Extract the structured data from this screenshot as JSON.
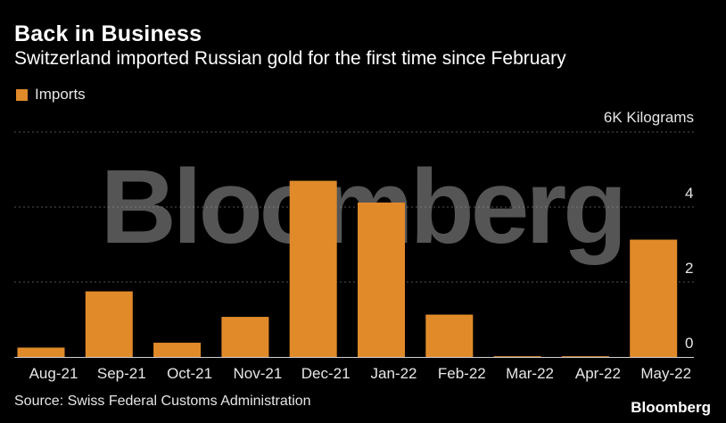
{
  "header": {
    "title": "Back in Business",
    "subtitle": "Switzerland imported Russian gold for the first time since February"
  },
  "legend": {
    "label": "Imports"
  },
  "unit_label": "6K Kilograms",
  "watermark": "Bloomberg",
  "footer": {
    "source": "Source: Swiss Federal Customs Administration",
    "brand": "Bloomberg"
  },
  "colors": {
    "bar": "#e08a2a",
    "background": "#000000",
    "grid": "#555555",
    "watermark": "#9a9a9a"
  },
  "chart_data": {
    "type": "bar",
    "categories": [
      "Aug-21",
      "Sep-21",
      "Oct-21",
      "Nov-21",
      "Dec-21",
      "Jan-22",
      "Feb-22",
      "Mar-22",
      "Apr-22",
      "May-22"
    ],
    "series": [
      {
        "name": "Imports",
        "values": [
          0.25,
          1.75,
          0.38,
          1.07,
          4.7,
          4.12,
          1.13,
          0.02,
          0.02,
          3.13
        ]
      }
    ],
    "ylabel": "6K Kilograms",
    "ylim": [
      0,
      6
    ],
    "yticks": [
      0,
      2,
      4
    ],
    "grid": true,
    "legend_position": "top-left"
  }
}
